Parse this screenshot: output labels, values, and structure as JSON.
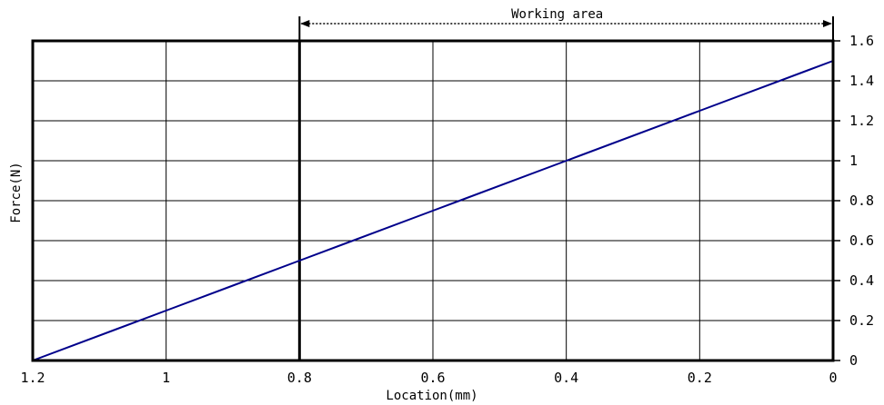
{
  "chart_data": {
    "type": "line",
    "title": "",
    "xlabel": "Location(mm)",
    "ylabel": "Force(N)",
    "xlim": [
      1.2,
      0
    ],
    "ylim": [
      0,
      1.6
    ],
    "x_reversed": true,
    "x_ticks": [
      1.2,
      1.0,
      0.8,
      0.6,
      0.4,
      0.2,
      0
    ],
    "x_tick_labels": [
      "1.2",
      "1",
      "0.8",
      "0.6",
      "0.4",
      "0.2",
      "0"
    ],
    "y_ticks": [
      0,
      0.2,
      0.4,
      0.6,
      0.8,
      1.0,
      1.2,
      1.4,
      1.6
    ],
    "y_tick_labels": [
      "0",
      "0.2",
      "0.4",
      "0.6",
      "0.8",
      "1",
      "1.2",
      "1.4",
      "1.6"
    ],
    "y_axis_side": "right",
    "grid": true,
    "series": [
      {
        "color": "#00008B",
        "x": [
          1.2,
          1.0,
          0.8,
          0.6,
          0.4,
          0.2,
          0
        ],
        "y": [
          0,
          0.25,
          0.5,
          0.75,
          1.0,
          1.25,
          1.5
        ]
      }
    ],
    "annotations": [
      {
        "type": "range-arrow",
        "label": "Working area",
        "x_start": 0.8,
        "x_end": 0,
        "style": "dotted",
        "boundary_x": 0.8
      }
    ]
  }
}
